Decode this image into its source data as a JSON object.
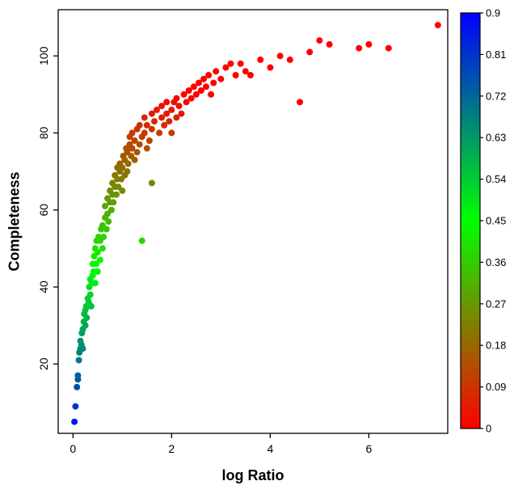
{
  "figure": {
    "background": "#ffffff",
    "axis_color": "#000000",
    "text_color": "#000000"
  },
  "chart_data": {
    "type": "scatter",
    "title": "",
    "xlabel": "log Ratio",
    "ylabel": "Completeness",
    "xlim": [
      -0.3,
      7.6
    ],
    "ylim": [
      2,
      112
    ],
    "x_ticks": [
      0,
      2,
      4,
      6
    ],
    "y_ticks": [
      20,
      40,
      60,
      80,
      100
    ],
    "grid": false,
    "legend_position": "none",
    "point_radius": 4,
    "colormap": {
      "type": "rgb-linear",
      "stops": [
        "#ff0000",
        "#00ff00",
        "#0000ff"
      ],
      "domain": [
        0,
        0.45,
        0.9
      ]
    },
    "colorbar": {
      "position": "right",
      "min": 0,
      "max": 0.9,
      "tick_values": [
        0.9,
        0.81,
        0.72,
        0.63,
        0.54,
        0.45,
        0.36,
        0.27,
        0.18,
        0.09,
        0
      ],
      "tick_labels": [
        "0.9",
        "0.81",
        "0.72",
        "0.63",
        "0.54",
        "0.45",
        "0.36",
        "0.27",
        "0.18",
        "0.09",
        "0"
      ]
    },
    "points": [
      [
        0.03,
        5,
        0.85
      ],
      [
        0.05,
        9,
        0.81
      ],
      [
        0.08,
        14,
        0.76
      ],
      [
        0.1,
        16,
        0.74
      ],
      [
        0.1,
        17,
        0.73
      ],
      [
        0.12,
        21,
        0.69
      ],
      [
        0.13,
        23,
        0.67
      ],
      [
        0.15,
        24,
        0.66
      ],
      [
        0.15,
        26,
        0.64
      ],
      [
        0.17,
        25,
        0.65
      ],
      [
        0.18,
        28,
        0.62
      ],
      [
        0.2,
        24,
        0.66
      ],
      [
        0.2,
        29,
        0.61
      ],
      [
        0.22,
        31,
        0.59
      ],
      [
        0.23,
        33,
        0.57
      ],
      [
        0.25,
        30,
        0.6
      ],
      [
        0.25,
        34,
        0.56
      ],
      [
        0.27,
        35,
        0.55
      ],
      [
        0.28,
        32,
        0.58
      ],
      [
        0.3,
        35,
        0.55
      ],
      [
        0.3,
        37,
        0.53
      ],
      [
        0.32,
        36,
        0.54
      ],
      [
        0.33,
        40,
        0.5
      ],
      [
        0.35,
        38,
        0.52
      ],
      [
        0.35,
        42,
        0.48
      ],
      [
        0.37,
        35,
        0.55
      ],
      [
        0.38,
        41,
        0.49
      ],
      [
        0.4,
        43,
        0.47
      ],
      [
        0.4,
        46,
        0.44
      ],
      [
        0.42,
        44,
        0.46
      ],
      [
        0.43,
        48,
        0.42
      ],
      [
        0.45,
        41,
        0.49
      ],
      [
        0.45,
        50,
        0.4
      ],
      [
        0.47,
        46,
        0.44
      ],
      [
        0.48,
        52,
        0.38
      ],
      [
        0.5,
        44,
        0.46
      ],
      [
        0.5,
        49,
        0.41
      ],
      [
        0.52,
        53,
        0.37
      ],
      [
        0.55,
        47,
        0.43
      ],
      [
        0.55,
        52,
        0.38
      ],
      [
        0.57,
        55,
        0.35
      ],
      [
        0.6,
        50,
        0.4
      ],
      [
        0.6,
        56,
        0.34
      ],
      [
        0.62,
        53,
        0.37
      ],
      [
        0.65,
        58,
        0.32
      ],
      [
        0.65,
        61,
        0.29
      ],
      [
        0.68,
        55,
        0.35
      ],
      [
        0.7,
        59,
        0.31
      ],
      [
        0.7,
        63,
        0.27
      ],
      [
        0.72,
        57,
        0.33
      ],
      [
        0.75,
        62,
        0.28
      ],
      [
        0.75,
        65,
        0.25
      ],
      [
        0.78,
        60,
        0.3
      ],
      [
        0.8,
        64,
        0.26
      ],
      [
        0.8,
        67,
        0.23
      ],
      [
        0.82,
        62,
        0.28
      ],
      [
        0.85,
        66,
        0.24
      ],
      [
        0.85,
        69,
        0.21
      ],
      [
        0.88,
        64,
        0.26
      ],
      [
        0.9,
        68,
        0.22
      ],
      [
        0.9,
        71,
        0.19
      ],
      [
        0.92,
        66,
        0.24
      ],
      [
        0.95,
        70,
        0.2
      ],
      [
        0.95,
        72,
        0.18
      ],
      [
        0.98,
        68,
        0.22
      ],
      [
        1.0,
        65,
        0.25
      ],
      [
        1.0,
        71,
        0.19
      ],
      [
        1.02,
        74,
        0.16
      ],
      [
        1.05,
        69,
        0.21
      ],
      [
        1.05,
        73,
        0.17
      ],
      [
        1.08,
        76,
        0.14
      ],
      [
        1.1,
        70,
        0.2
      ],
      [
        1.1,
        75,
        0.15
      ],
      [
        1.12,
        72,
        0.18
      ],
      [
        1.15,
        77,
        0.13
      ],
      [
        1.15,
        79,
        0.11
      ],
      [
        1.18,
        74,
        0.16
      ],
      [
        1.2,
        76,
        0.14
      ],
      [
        1.2,
        80,
        0.1
      ],
      [
        1.25,
        73,
        0.17
      ],
      [
        1.25,
        78,
        0.12
      ],
      [
        1.3,
        75,
        0.15
      ],
      [
        1.3,
        81,
        0.09
      ],
      [
        1.35,
        77,
        0.13
      ],
      [
        1.35,
        82,
        0.08
      ],
      [
        1.4,
        52,
        0.38
      ],
      [
        1.4,
        79,
        0.11
      ],
      [
        1.45,
        80,
        0.1
      ],
      [
        1.45,
        84,
        0.06
      ],
      [
        1.5,
        76,
        0.14
      ],
      [
        1.5,
        82,
        0.08
      ],
      [
        1.55,
        78,
        0.12
      ],
      [
        1.6,
        67,
        0.23
      ],
      [
        1.6,
        81,
        0.09
      ],
      [
        1.6,
        85,
        0.05
      ],
      [
        1.65,
        83,
        0.07
      ],
      [
        1.7,
        86,
        0.04
      ],
      [
        1.75,
        80,
        0.1
      ],
      [
        1.8,
        84,
        0.06
      ],
      [
        1.8,
        87,
        0.03
      ],
      [
        1.85,
        82,
        0.08
      ],
      [
        1.9,
        85,
        0.05
      ],
      [
        1.9,
        88,
        0.02
      ],
      [
        1.95,
        83,
        0.07
      ],
      [
        2.0,
        80,
        0.1
      ],
      [
        2.0,
        86,
        0.04
      ],
      [
        2.05,
        88,
        0.02
      ],
      [
        2.1,
        84,
        0.06
      ],
      [
        2.1,
        89,
        0.01
      ],
      [
        2.15,
        87,
        0.03
      ],
      [
        2.2,
        85,
        0.05
      ],
      [
        2.25,
        90,
        0
      ],
      [
        2.3,
        88,
        0.02
      ],
      [
        2.35,
        91,
        0
      ],
      [
        2.4,
        89,
        0.01
      ],
      [
        2.45,
        92,
        0
      ],
      [
        2.5,
        90,
        0
      ],
      [
        2.55,
        93,
        0
      ],
      [
        2.6,
        91,
        0
      ],
      [
        2.65,
        94,
        0
      ],
      [
        2.7,
        92,
        0
      ],
      [
        2.75,
        95,
        0
      ],
      [
        2.8,
        90,
        0
      ],
      [
        2.85,
        93,
        0
      ],
      [
        2.9,
        96,
        0
      ],
      [
        3.0,
        94,
        0
      ],
      [
        3.1,
        97,
        0
      ],
      [
        3.2,
        98,
        0
      ],
      [
        3.3,
        95,
        0
      ],
      [
        3.4,
        98,
        0
      ],
      [
        3.5,
        96,
        0
      ],
      [
        3.6,
        95,
        0
      ],
      [
        3.8,
        99,
        0
      ],
      [
        4.0,
        97,
        0
      ],
      [
        4.2,
        100,
        0
      ],
      [
        4.4,
        99,
        0
      ],
      [
        4.6,
        88,
        0
      ],
      [
        4.8,
        101,
        0
      ],
      [
        5.0,
        104,
        0
      ],
      [
        5.2,
        103,
        0
      ],
      [
        5.8,
        102,
        0
      ],
      [
        6.0,
        103,
        0
      ],
      [
        6.4,
        102,
        0
      ],
      [
        7.4,
        108,
        0
      ]
    ]
  }
}
